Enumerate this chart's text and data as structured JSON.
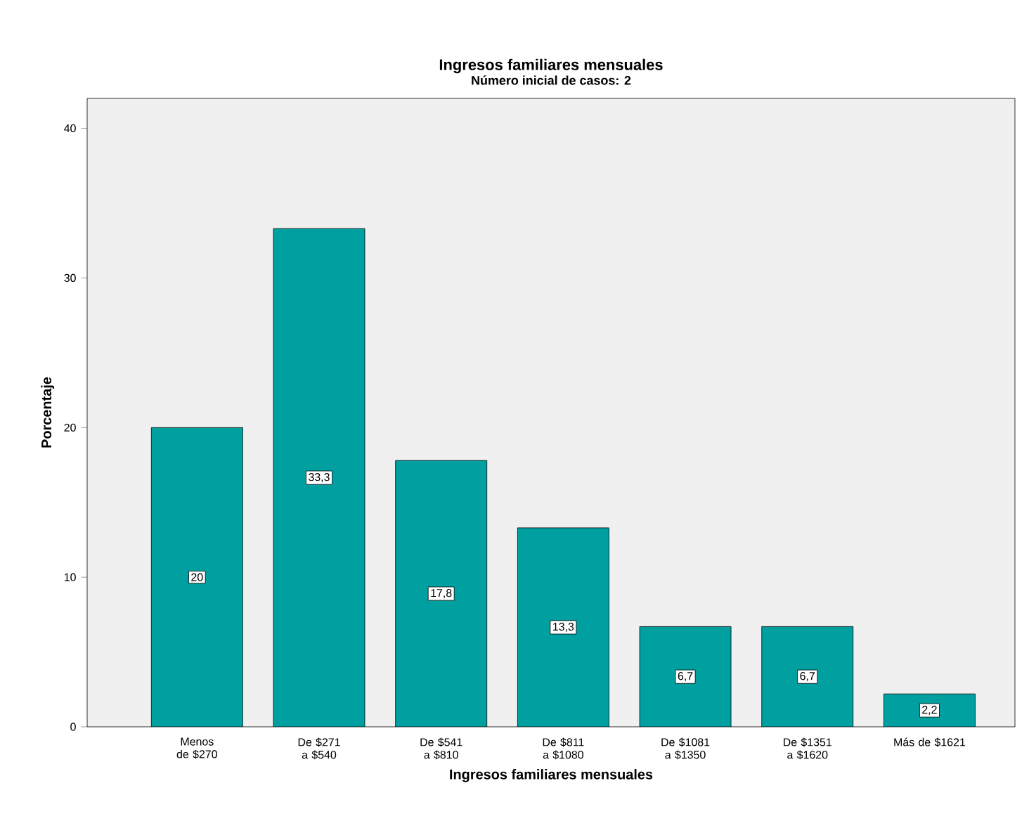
{
  "chart_data": {
    "type": "bar",
    "title": "Ingresos familiares mensuales",
    "subtitle": "Número inicial de casos: 2",
    "xlabel": "Ingresos familiares mensuales",
    "ylabel": "Porcentaje",
    "categories": [
      "Menos de $270",
      "De $271 a $540",
      "De $541 a $810",
      "De $811 a $1080",
      "De $1081 a $1350",
      "De $1351 a $1620",
      "Más de $1621"
    ],
    "values": [
      20,
      33.3,
      17.8,
      13.3,
      6.7,
      6.7,
      2.2
    ],
    "value_labels": [
      "20",
      "33,3",
      "17,8",
      "13,3",
      "6,7",
      "6,7",
      "2,2"
    ],
    "color": "#00a0a0",
    "ylim": [
      0,
      42
    ],
    "yticks": [
      0,
      10,
      20,
      30,
      40
    ],
    "grid": false
  }
}
